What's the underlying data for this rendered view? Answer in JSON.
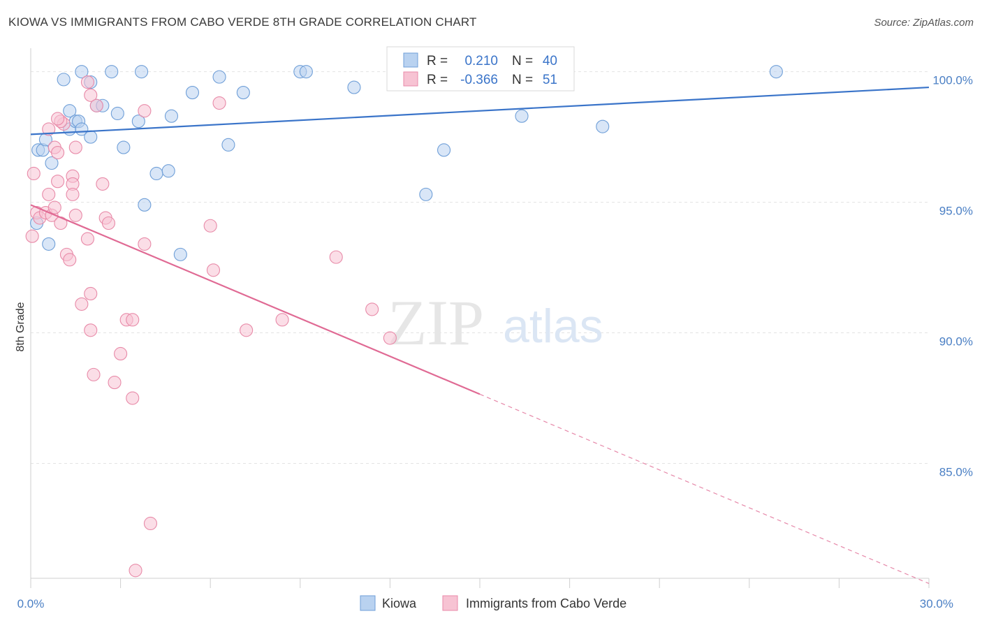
{
  "title": "KIOWA VS IMMIGRANTS FROM CABO VERDE 8TH GRADE CORRELATION CHART",
  "source": "Source: ZipAtlas.com",
  "watermark": {
    "zip": "ZIP",
    "atlas": "atlas"
  },
  "chart_data": {
    "type": "scatter",
    "ylabel": "8th Grade",
    "xlim": [
      0,
      30
    ],
    "ylim": [
      80.6,
      100.9
    ],
    "x_tick_labels": [
      "0.0%",
      "30.0%"
    ],
    "y_ticks": [
      85,
      90,
      95,
      100
    ],
    "y_tick_labels": [
      "85.0%",
      "90.0%",
      "95.0%",
      "100.0%"
    ],
    "grid": true,
    "colors": {
      "kiowa_fill": "#b9d2f0",
      "kiowa_stroke": "#6f9fd8",
      "kiowa_line": "#3a74c9",
      "cabo_fill": "#f7c3d3",
      "cabo_stroke": "#e88aa8",
      "cabo_line": "#e06a94",
      "tick_text": "#4a7fc4",
      "grid": "#e3e3e3"
    },
    "stats": [
      {
        "r_label": "R =",
        "r": "0.210",
        "n_label": "N =",
        "n": "40"
      },
      {
        "r_label": "R =",
        "r": "-0.366",
        "n_label": "N =",
        "n": "51"
      }
    ],
    "series": [
      {
        "name": "Kiowa",
        "trend": {
          "x0": 0,
          "y0": 97.6,
          "x1": 30,
          "y1": 99.4,
          "solid_until": 30
        },
        "points": [
          [
            0.2,
            94.2
          ],
          [
            0.25,
            97.0
          ],
          [
            0.4,
            97.0
          ],
          [
            0.5,
            97.4
          ],
          [
            0.7,
            96.5
          ],
          [
            1.1,
            99.7
          ],
          [
            1.3,
            97.8
          ],
          [
            1.3,
            98.5
          ],
          [
            1.5,
            98.1
          ],
          [
            1.6,
            98.1
          ],
          [
            1.7,
            97.8
          ],
          [
            2.0,
            97.5
          ],
          [
            2.2,
            98.7
          ],
          [
            2.4,
            98.7
          ],
          [
            1.7,
            100.0
          ],
          [
            2.7,
            100.0
          ],
          [
            3.7,
            100.0
          ],
          [
            2.9,
            98.4
          ],
          [
            3.1,
            97.1
          ],
          [
            3.6,
            98.1
          ],
          [
            3.8,
            94.9
          ],
          [
            4.2,
            96.1
          ],
          [
            4.6,
            96.2
          ],
          [
            4.7,
            98.3
          ],
          [
            5.0,
            93.0
          ],
          [
            5.4,
            99.2
          ],
          [
            6.3,
            99.8
          ],
          [
            6.6,
            97.2
          ],
          [
            7.1,
            99.2
          ],
          [
            9.0,
            100.0
          ],
          [
            9.2,
            100.0
          ],
          [
            10.8,
            99.4
          ],
          [
            13.2,
            95.3
          ],
          [
            13.8,
            97.0
          ],
          [
            15.8,
            100.0
          ],
          [
            16.4,
            98.3
          ],
          [
            19.1,
            97.9
          ],
          [
            24.9,
            100.0
          ],
          [
            0.6,
            93.4
          ],
          [
            2.0,
            99.6
          ]
        ]
      },
      {
        "name": "Immigrants from Cabo Verde",
        "trend": {
          "x0": 0,
          "y0": 94.9,
          "x1": 30,
          "y1": 80.4,
          "solid_until": 15
        },
        "points": [
          [
            0.05,
            93.7
          ],
          [
            0.1,
            96.1
          ],
          [
            0.2,
            94.6
          ],
          [
            0.3,
            94.4
          ],
          [
            0.5,
            94.6
          ],
          [
            0.6,
            95.3
          ],
          [
            0.6,
            97.8
          ],
          [
            0.7,
            94.5
          ],
          [
            0.8,
            94.8
          ],
          [
            0.8,
            97.1
          ],
          [
            0.9,
            96.9
          ],
          [
            0.9,
            95.8
          ],
          [
            1.0,
            94.2
          ],
          [
            1.1,
            98.0
          ],
          [
            1.0,
            98.1
          ],
          [
            1.2,
            93.0
          ],
          [
            1.3,
            92.8
          ],
          [
            1.4,
            96.0
          ],
          [
            1.4,
            95.7
          ],
          [
            1.4,
            95.3
          ],
          [
            1.5,
            94.5
          ],
          [
            1.5,
            97.1
          ],
          [
            1.7,
            91.1
          ],
          [
            1.9,
            99.6
          ],
          [
            2.0,
            99.1
          ],
          [
            1.9,
            93.6
          ],
          [
            2.0,
            91.5
          ],
          [
            2.0,
            90.1
          ],
          [
            2.1,
            88.4
          ],
          [
            2.2,
            98.7
          ],
          [
            2.4,
            95.7
          ],
          [
            2.5,
            94.4
          ],
          [
            2.6,
            94.2
          ],
          [
            2.8,
            88.1
          ],
          [
            3.0,
            89.2
          ],
          [
            3.2,
            90.5
          ],
          [
            3.4,
            90.5
          ],
          [
            3.4,
            87.5
          ],
          [
            3.5,
            80.9
          ],
          [
            3.8,
            93.4
          ],
          [
            3.8,
            98.5
          ],
          [
            4.0,
            82.7
          ],
          [
            6.0,
            94.1
          ],
          [
            6.1,
            92.4
          ],
          [
            6.3,
            98.8
          ],
          [
            7.2,
            90.1
          ],
          [
            8.4,
            90.5
          ],
          [
            10.2,
            92.9
          ],
          [
            11.4,
            90.9
          ],
          [
            12.0,
            89.8
          ],
          [
            0.9,
            98.2
          ]
        ]
      }
    ]
  }
}
